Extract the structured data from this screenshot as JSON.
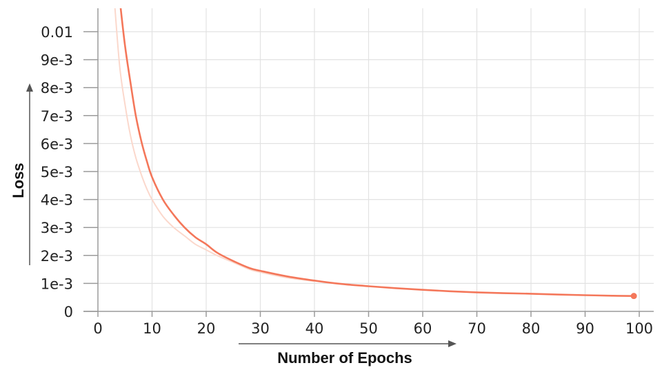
{
  "chart_data": {
    "type": "line",
    "xlabel": "Number of Epochs",
    "ylabel": "Loss",
    "xlim": [
      0,
      100
    ],
    "ylim": [
      0,
      0.01
    ],
    "x_ticks": [
      0,
      10,
      20,
      30,
      40,
      50,
      60,
      70,
      80,
      90,
      100
    ],
    "y_ticks": [
      0,
      0.001,
      0.002,
      0.003,
      0.004,
      0.005,
      0.006,
      0.007,
      0.008,
      0.009,
      0.01
    ],
    "x_tick_labels": [
      "0",
      "10",
      "20",
      "30",
      "40",
      "50",
      "60",
      "70",
      "80",
      "90",
      "100"
    ],
    "y_tick_labels": [
      "0",
      "1e-3",
      "2e-3",
      "3e-3",
      "4e-3",
      "5e-3",
      "6e-3",
      "7e-3",
      "8e-3",
      "9e-3",
      "0.01"
    ],
    "grid": true,
    "colors": {
      "smoothed": "#f4775a",
      "raw": "#fbd8cc",
      "axis_arrow": "#555555"
    },
    "series": [
      {
        "style": "smoothed",
        "x": [
          4,
          5,
          6,
          7,
          8,
          9,
          10,
          12,
          14,
          16,
          18,
          20,
          22,
          25,
          28,
          30,
          35,
          40,
          45,
          50,
          55,
          60,
          65,
          70,
          75,
          80,
          85,
          90,
          95,
          99
        ],
        "y": [
          0.0112,
          0.0095,
          0.0082,
          0.007,
          0.0061,
          0.0054,
          0.0048,
          0.004,
          0.00345,
          0.003,
          0.00265,
          0.0024,
          0.0021,
          0.0018,
          0.00155,
          0.00145,
          0.00125,
          0.0011,
          0.00098,
          0.0009,
          0.00083,
          0.00077,
          0.00072,
          0.00068,
          0.00065,
          0.00063,
          0.0006,
          0.00058,
          0.00056,
          0.00055
        ]
      },
      {
        "style": "raw",
        "x": [
          3,
          4,
          5,
          6,
          7,
          8,
          9,
          10,
          12,
          14,
          16,
          18,
          20,
          22,
          25,
          28,
          30,
          35,
          40
        ],
        "y": [
          0.0112,
          0.0088,
          0.0074,
          0.0063,
          0.0055,
          0.0049,
          0.0044,
          0.004,
          0.0034,
          0.003,
          0.0027,
          0.0024,
          0.0022,
          0.002,
          0.00175,
          0.0015,
          0.0014,
          0.0012,
          0.00108
        ]
      }
    ]
  }
}
